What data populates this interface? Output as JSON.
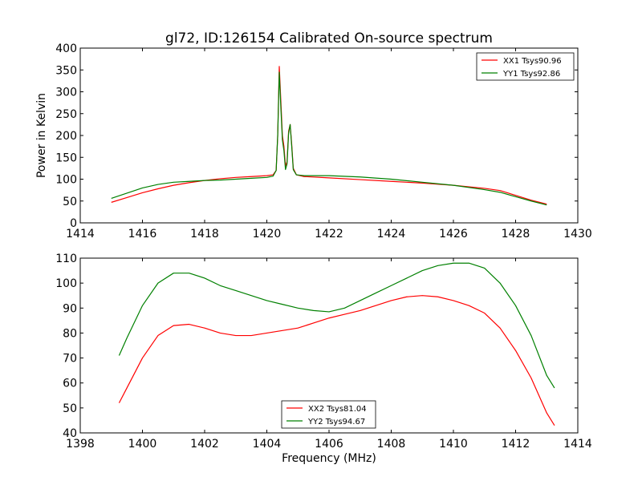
{
  "chart_data": [
    {
      "type": "line",
      "title": "gl72, ID:126154 Calibrated On-source spectrum",
      "xlabel": "",
      "ylabel": "Power in Kelvin",
      "xlim": [
        1414,
        1430
      ],
      "ylim": [
        0,
        400
      ],
      "xticks": [
        1414,
        1416,
        1418,
        1420,
        1422,
        1424,
        1426,
        1428,
        1430
      ],
      "yticks": [
        0,
        50,
        100,
        150,
        200,
        250,
        300,
        350,
        400
      ],
      "legend_position": "top-right",
      "grid": false,
      "series": [
        {
          "name": "XX1 Tsys90.96",
          "color": "#ff0000",
          "points": [
            [
              1415.0,
              47
            ],
            [
              1415.5,
              58
            ],
            [
              1416.0,
              69
            ],
            [
              1416.5,
              78
            ],
            [
              1417.0,
              86
            ],
            [
              1417.5,
              92
            ],
            [
              1418.0,
              97
            ],
            [
              1418.5,
              101
            ],
            [
              1419.0,
              104
            ],
            [
              1419.5,
              106
            ],
            [
              1420.0,
              108
            ],
            [
              1420.2,
              110
            ],
            [
              1420.3,
              120
            ],
            [
              1420.35,
              200
            ],
            [
              1420.4,
              358
            ],
            [
              1420.45,
              280
            ],
            [
              1420.5,
              200
            ],
            [
              1420.55,
              175
            ],
            [
              1420.6,
              130
            ],
            [
              1420.65,
              140
            ],
            [
              1420.7,
              210
            ],
            [
              1420.75,
              225
            ],
            [
              1420.8,
              180
            ],
            [
              1420.85,
              125
            ],
            [
              1420.95,
              110
            ],
            [
              1421.2,
              106
            ],
            [
              1422.0,
              103
            ],
            [
              1423.0,
              99
            ],
            [
              1424.0,
              95
            ],
            [
              1425.0,
              91
            ],
            [
              1426.0,
              86
            ],
            [
              1427.0,
              79
            ],
            [
              1427.5,
              74
            ],
            [
              1428.0,
              63
            ],
            [
              1428.5,
              52
            ],
            [
              1429.0,
              43
            ]
          ]
        },
        {
          "name": "YY1 Tsys92.86",
          "color": "#008000",
          "points": [
            [
              1415.0,
              56
            ],
            [
              1415.5,
              68
            ],
            [
              1416.0,
              80
            ],
            [
              1416.5,
              88
            ],
            [
              1417.0,
              93
            ],
            [
              1417.5,
              95
            ],
            [
              1418.0,
              97
            ],
            [
              1418.5,
              98
            ],
            [
              1419.0,
              100
            ],
            [
              1419.5,
              102
            ],
            [
              1420.0,
              104
            ],
            [
              1420.2,
              107
            ],
            [
              1420.3,
              120
            ],
            [
              1420.35,
              200
            ],
            [
              1420.4,
              345
            ],
            [
              1420.45,
              265
            ],
            [
              1420.5,
              190
            ],
            [
              1420.55,
              165
            ],
            [
              1420.6,
              122
            ],
            [
              1420.65,
              135
            ],
            [
              1420.7,
              205
            ],
            [
              1420.75,
              225
            ],
            [
              1420.8,
              175
            ],
            [
              1420.85,
              122
            ],
            [
              1420.95,
              110
            ],
            [
              1421.2,
              108
            ],
            [
              1422.0,
              108
            ],
            [
              1423.0,
              105
            ],
            [
              1424.0,
              100
            ],
            [
              1425.0,
              93
            ],
            [
              1426.0,
              86
            ],
            [
              1427.0,
              76
            ],
            [
              1427.5,
              70
            ],
            [
              1428.0,
              60
            ],
            [
              1428.5,
              50
            ],
            [
              1429.0,
              41
            ]
          ]
        }
      ]
    },
    {
      "type": "line",
      "title": "",
      "xlabel": "Frequency (MHz)",
      "ylabel": "",
      "xlim": [
        1398,
        1414
      ],
      "ylim": [
        40,
        110
      ],
      "xticks": [
        1398,
        1400,
        1402,
        1404,
        1406,
        1408,
        1410,
        1412,
        1414
      ],
      "yticks": [
        40,
        50,
        60,
        70,
        80,
        90,
        100,
        110
      ],
      "legend_position": "bottom-center",
      "grid": false,
      "series": [
        {
          "name": "XX2 Tsys81.04",
          "color": "#ff0000",
          "points": [
            [
              1399.25,
              52
            ],
            [
              1399.5,
              58
            ],
            [
              1400.0,
              70
            ],
            [
              1400.5,
              79
            ],
            [
              1401.0,
              83
            ],
            [
              1401.5,
              83.5
            ],
            [
              1402.0,
              82
            ],
            [
              1402.5,
              80
            ],
            [
              1403.0,
              79
            ],
            [
              1403.5,
              79
            ],
            [
              1404.0,
              80
            ],
            [
              1404.5,
              81
            ],
            [
              1405.0,
              82
            ],
            [
              1405.5,
              84
            ],
            [
              1406.0,
              86
            ],
            [
              1406.5,
              87.5
            ],
            [
              1407.0,
              89
            ],
            [
              1407.5,
              91
            ],
            [
              1408.0,
              93
            ],
            [
              1408.5,
              94.5
            ],
            [
              1409.0,
              95
            ],
            [
              1409.5,
              94.5
            ],
            [
              1410.0,
              93
            ],
            [
              1410.5,
              91
            ],
            [
              1411.0,
              88
            ],
            [
              1411.5,
              82
            ],
            [
              1412.0,
              73
            ],
            [
              1412.5,
              62
            ],
            [
              1413.0,
              48
            ],
            [
              1413.25,
              43
            ]
          ]
        },
        {
          "name": "YY2 Tsys94.67",
          "color": "#008000",
          "points": [
            [
              1399.25,
              71
            ],
            [
              1399.5,
              78
            ],
            [
              1400.0,
              91
            ],
            [
              1400.5,
              100
            ],
            [
              1401.0,
              104
            ],
            [
              1401.5,
              104
            ],
            [
              1402.0,
              102
            ],
            [
              1402.5,
              99
            ],
            [
              1403.0,
              97
            ],
            [
              1403.5,
              95
            ],
            [
              1404.0,
              93
            ],
            [
              1404.5,
              91.5
            ],
            [
              1405.0,
              90
            ],
            [
              1405.5,
              89
            ],
            [
              1406.0,
              88.5
            ],
            [
              1406.5,
              90
            ],
            [
              1407.0,
              93
            ],
            [
              1407.5,
              96
            ],
            [
              1408.0,
              99
            ],
            [
              1408.5,
              102
            ],
            [
              1409.0,
              105
            ],
            [
              1409.5,
              107
            ],
            [
              1410.0,
              108
            ],
            [
              1410.5,
              108
            ],
            [
              1411.0,
              106
            ],
            [
              1411.5,
              100
            ],
            [
              1412.0,
              91
            ],
            [
              1412.5,
              79
            ],
            [
              1413.0,
              63
            ],
            [
              1413.25,
              58
            ]
          ]
        }
      ]
    }
  ]
}
